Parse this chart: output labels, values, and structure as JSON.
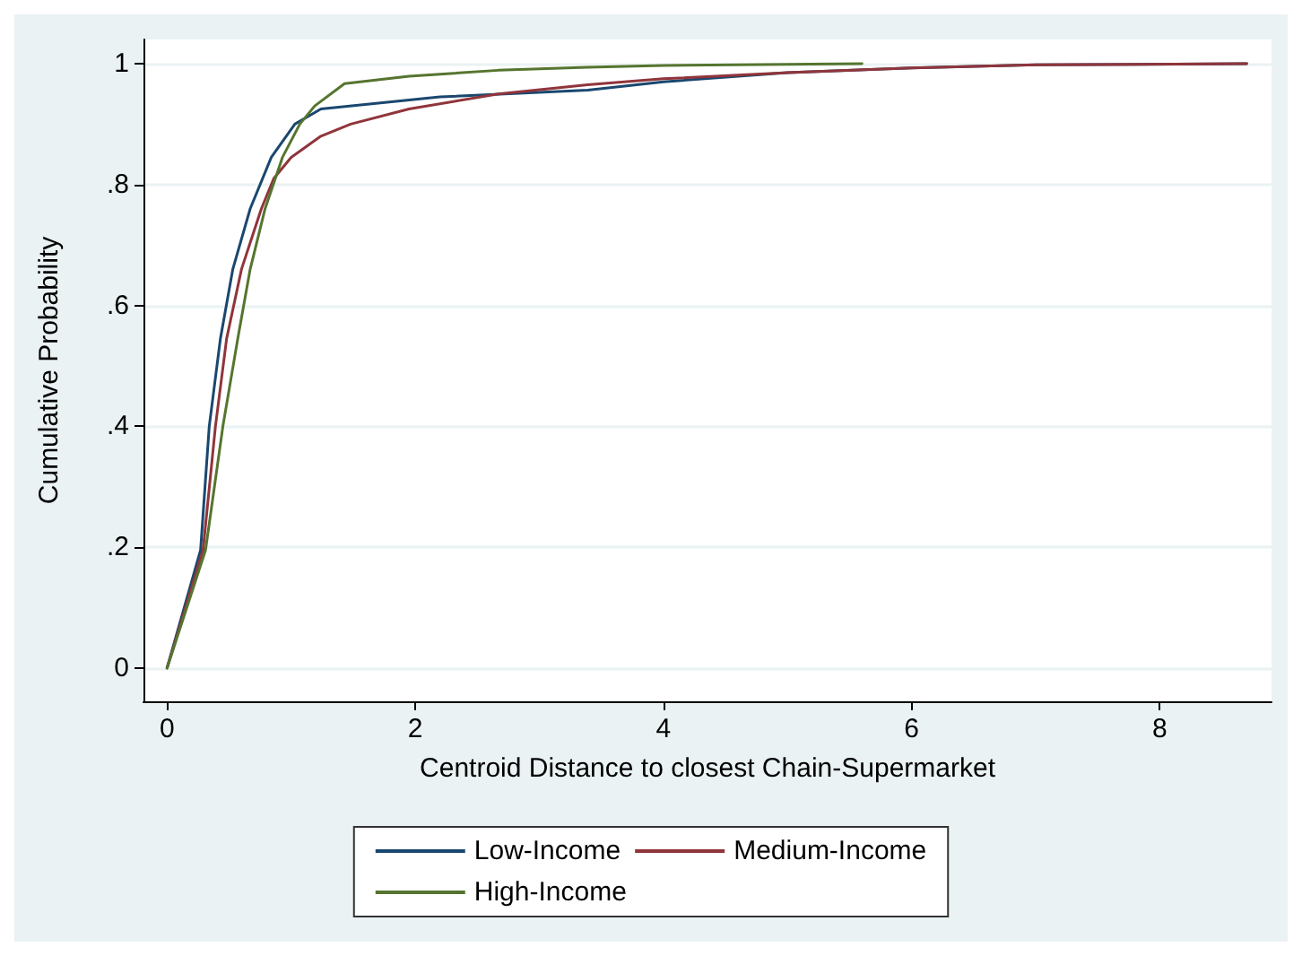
{
  "chart_data": {
    "type": "line",
    "xlabel": "Centroid Distance to closest Chain-Supermarket",
    "ylabel": "Cumulative Probability",
    "xlim": [
      -0.19,
      8.9
    ],
    "ylim": [
      -0.055,
      1.04
    ],
    "xticks": [
      0,
      2,
      4,
      6,
      8
    ],
    "yticks": [
      0,
      {
        "value": 0.2,
        "label": ".2"
      },
      {
        "value": 0.4,
        "label": ".4"
      },
      {
        "value": 0.6,
        "label": ".6"
      },
      {
        "value": 0.8,
        "label": ".8"
      },
      1
    ],
    "grid": "y",
    "legend": "bottom",
    "marker": "none",
    "line_style": "solid",
    "series": [
      {
        "name": "Low-Income",
        "color": "#1a476f",
        "x": [
          0,
          0.27,
          0.34,
          0.43,
          0.53,
          0.67,
          0.84,
          1.03,
          1.24,
          1.72,
          2.2,
          3.39,
          4,
          5,
          6,
          7,
          8.7
        ],
        "values": [
          0,
          0.195,
          0.4,
          0.545,
          0.66,
          0.76,
          0.845,
          0.9,
          0.925,
          0.935,
          0.945,
          0.956,
          0.97,
          0.985,
          0.993,
          0.998,
          1
        ]
      },
      {
        "name": "Medium-Income",
        "color": "#90353b",
        "x": [
          0,
          0.29,
          0.39,
          0.48,
          0.6,
          0.76,
          0.86,
          1,
          1.24,
          1.48,
          1.95,
          2.67,
          3.39,
          4,
          5,
          6,
          7,
          8.7
        ],
        "values": [
          0,
          0.195,
          0.4,
          0.545,
          0.66,
          0.76,
          0.81,
          0.845,
          0.88,
          0.9,
          0.925,
          0.95,
          0.965,
          0.975,
          0.985,
          0.993,
          0.998,
          1
        ]
      },
      {
        "name": "High-Income",
        "color": "#55752f",
        "x": [
          0,
          0.31,
          0.45,
          0.57,
          0.67,
          0.79,
          0.93,
          1.07,
          1.19,
          1.43,
          1.95,
          2.67,
          3.39,
          4,
          5.6
        ],
        "values": [
          0,
          0.195,
          0.4,
          0.545,
          0.66,
          0.76,
          0.845,
          0.9,
          0.93,
          0.967,
          0.979,
          0.989,
          0.994,
          0.997,
          1
        ]
      }
    ]
  }
}
